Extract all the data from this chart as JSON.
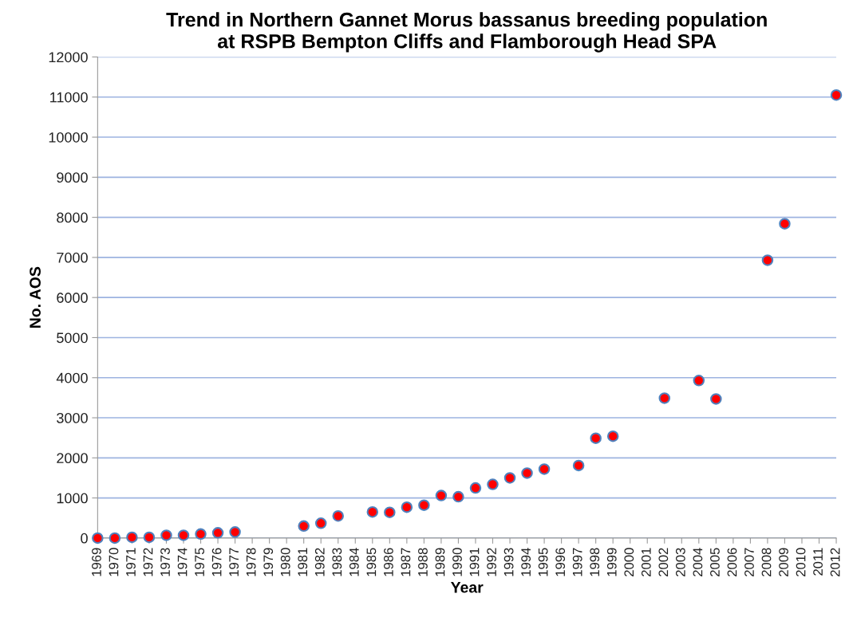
{
  "chart_data": {
    "type": "scatter",
    "title": "Trend in Northern Gannet Morus bassanus breeding population\nat RSPB Bempton Cliffs and Flamborough Head SPA",
    "xlabel": "Year",
    "ylabel": "No. AOS",
    "categories": [
      "1969",
      "1970",
      "1971",
      "1972",
      "1973",
      "1974",
      "1975",
      "1976",
      "1977",
      "1978",
      "1979",
      "1980",
      "1981",
      "1982",
      "1983",
      "1984",
      "1985",
      "1986",
      "1987",
      "1988",
      "1989",
      "1990",
      "1991",
      "1992",
      "1993",
      "1994",
      "1995",
      "1996",
      "1997",
      "1998",
      "1999",
      "2000",
      "2001",
      "2002",
      "2003",
      "2004",
      "2005",
      "2006",
      "2007",
      "2008",
      "2009",
      "2010",
      "2011",
      "2012"
    ],
    "series": [
      {
        "color": "#ff0000",
        "values": [
          0,
          0,
          20,
          20,
          70,
          70,
          100,
          130,
          150,
          null,
          null,
          null,
          300,
          370,
          550,
          null,
          650,
          640,
          770,
          820,
          1060,
          1030,
          1250,
          1340,
          1500,
          1620,
          1720,
          null,
          1810,
          2490,
          2540,
          null,
          null,
          3490,
          null,
          3930,
          3470,
          null,
          null,
          6930,
          7840,
          null,
          null,
          11050
        ]
      }
    ],
    "ylim": [
      0,
      12000
    ],
    "yticks": [
      0,
      1000,
      2000,
      3000,
      4000,
      5000,
      6000,
      7000,
      8000,
      9000,
      10000,
      11000,
      12000
    ],
    "grid": "y",
    "marker": "circle",
    "legend": false
  }
}
